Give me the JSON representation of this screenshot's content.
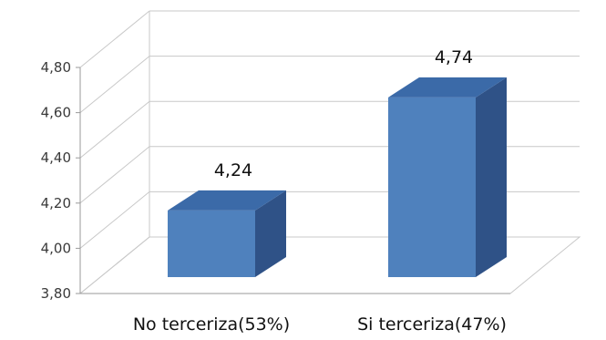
{
  "chart_data": {
    "type": "bar",
    "categories": [
      "No terceriza(53%)",
      "Si terceriza(47%)"
    ],
    "values": [
      4.24,
      4.74
    ],
    "value_labels": [
      "4,24",
      "4,74"
    ],
    "ylim": [
      3.8,
      4.8
    ],
    "yticks": [
      3.8,
      4.0,
      4.2,
      4.4,
      4.6,
      4.8
    ],
    "ytick_labels": [
      "3,80",
      "4,00",
      "4,20",
      "4,40",
      "4,60",
      "4,80"
    ],
    "title": "",
    "xlabel": "",
    "ylabel": "",
    "grid": true,
    "style": "3d",
    "colors": {
      "bar_front": "#4f81bd",
      "bar_side": "#2f5287",
      "bar_top": "#3b6aa8",
      "grid": "#c8c8c8"
    }
  }
}
